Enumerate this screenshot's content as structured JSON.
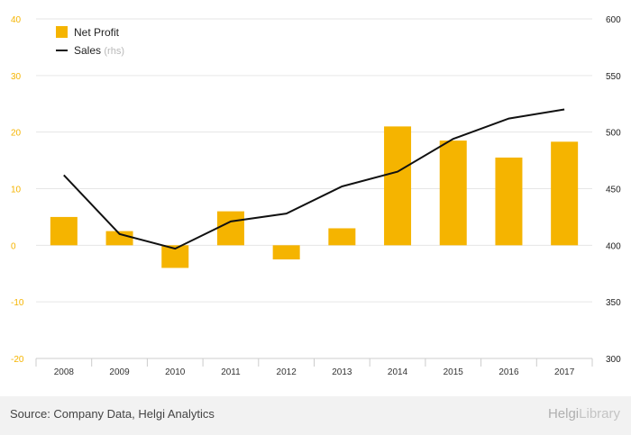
{
  "chart_data": {
    "type": "bar",
    "categories": [
      "2008",
      "2009",
      "2010",
      "2011",
      "2012",
      "2013",
      "2014",
      "2015",
      "2016",
      "2017"
    ],
    "series": [
      {
        "name": "Net Profit",
        "type": "bar",
        "axis": "left",
        "color": "#f5b400",
        "values": [
          5.0,
          2.5,
          -4.0,
          6.0,
          -2.5,
          3.0,
          21.0,
          18.5,
          15.5,
          18.3
        ]
      },
      {
        "name": "Sales",
        "legend_suffix": "(rhs)",
        "type": "line",
        "axis": "right",
        "color": "#111111",
        "values": [
          462,
          410,
          397,
          421,
          428,
          452,
          465,
          494,
          512,
          520
        ]
      }
    ],
    "yleft": {
      "lim": [
        -20,
        40
      ],
      "ticks": [
        "40",
        "30",
        "20",
        "10",
        "0",
        "-10",
        "-20"
      ]
    },
    "yright": {
      "lim": [
        300,
        600
      ],
      "ticks": [
        "600",
        "550",
        "500",
        "450",
        "400",
        "350",
        "300"
      ]
    },
    "grid": true,
    "legend": "top-left"
  },
  "legend": {
    "bar_label": "Net Profit",
    "line_label": "Sales",
    "line_suffix": "(rhs)"
  },
  "footer": {
    "source": "Source: Company Data, Helgi Analytics",
    "brand_main": "Helgi",
    "brand_sub": "Library"
  }
}
